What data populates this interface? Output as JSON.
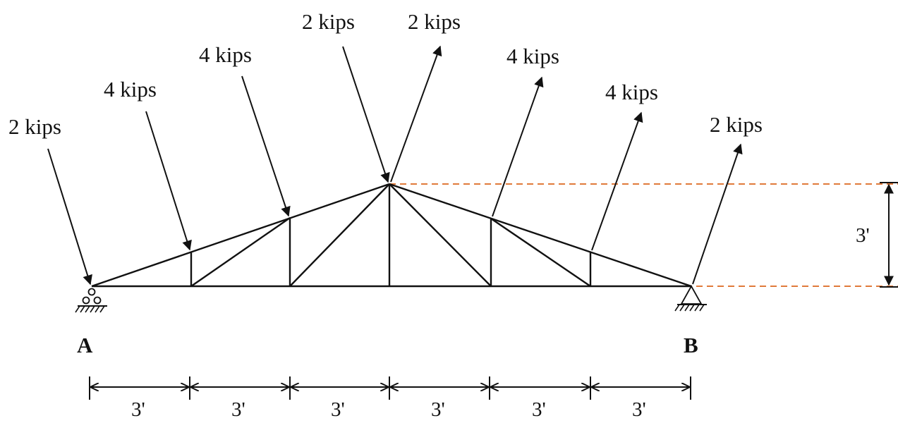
{
  "loads": [
    {
      "label": "2 kips"
    },
    {
      "label": "4 kips"
    },
    {
      "label": "4 kips"
    },
    {
      "label": "2 kips"
    },
    {
      "label": "2 kips"
    },
    {
      "label": "4 kips"
    },
    {
      "label": "4 kips"
    },
    {
      "label": "2 kips"
    }
  ],
  "supports": [
    {
      "label": "A"
    },
    {
      "label": "B"
    }
  ],
  "dimensions": {
    "panels": [
      "3'",
      "3'",
      "3'",
      "3'",
      "3'",
      "3'"
    ],
    "height": "3'"
  },
  "colors": {
    "members": "#111111",
    "guides": "#e07a3a"
  }
}
